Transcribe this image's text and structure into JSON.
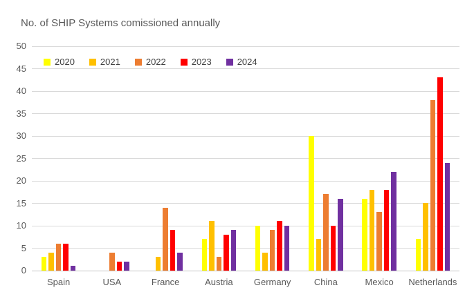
{
  "chart_data": {
    "type": "bar",
    "title": "No. of SHIP Systems comissioned annually",
    "xlabel": "",
    "ylabel": "",
    "categories": [
      "Spain",
      "USA",
      "France",
      "Austria",
      "Germany",
      "China",
      "Mexico",
      "Netherlands"
    ],
    "series": [
      {
        "name": "2020",
        "color": "#FFFF00",
        "values": [
          3,
          0,
          0,
          7,
          10,
          30,
          16,
          7
        ]
      },
      {
        "name": "2021",
        "color": "#FFC000",
        "values": [
          4,
          0,
          3,
          11,
          4,
          7,
          18,
          15
        ]
      },
      {
        "name": "2022",
        "color": "#ED7D31",
        "values": [
          6,
          4,
          14,
          3,
          9,
          17,
          13,
          38
        ]
      },
      {
        "name": "2023",
        "color": "#FF0000",
        "values": [
          6,
          2,
          9,
          8,
          11,
          10,
          18,
          43
        ]
      },
      {
        "name": "2024",
        "color": "#7030A0",
        "values": [
          1,
          2,
          4,
          9,
          10,
          16,
          22,
          24
        ]
      }
    ],
    "ylim": [
      0,
      50
    ],
    "yticks": [
      0,
      5,
      10,
      15,
      20,
      25,
      30,
      35,
      40,
      45,
      50
    ],
    "grid": true,
    "legend_position": "top-left"
  },
  "colors": {
    "gridline": "#d9d9d9",
    "axis_line": "#c3c3c3",
    "text": "#595959",
    "background": "#ffffff"
  }
}
